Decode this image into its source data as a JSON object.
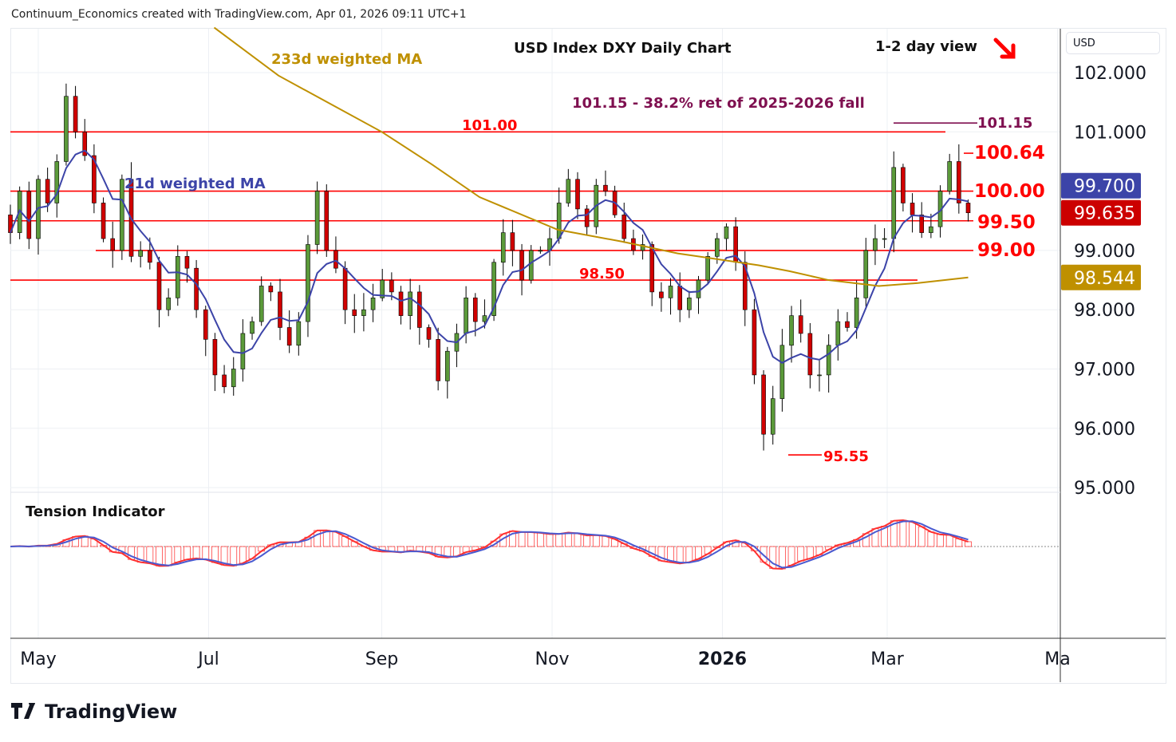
{
  "header": "Continuum_Economics created with TradingView.com, Apr 01, 2026 09:11 UTC+1",
  "currency": "USD",
  "brand": "TradingView",
  "chart_data": {
    "type": "candlestick",
    "title": "USD Index DXY Daily Chart",
    "view": "1-2 day view",
    "view_arrow": "down-right",
    "annotations": {
      "ma233_label": "233d weighted MA",
      "ma21_label": "21d weighted MA",
      "retracement": "101.15 - 38.2% ret of 2025-2026 fall",
      "level_101_15": "101.15",
      "level_101_00": "101.00",
      "level_100_64": "100.64",
      "level_100_00": "100.00",
      "level_99_50": "99.50",
      "level_99_00": "99.00",
      "level_98_50": "98.50",
      "level_95_55": "95.55",
      "indicator_title": "Tension Indicator"
    },
    "levels": [
      101.15,
      101.0,
      100.64,
      100.0,
      99.5,
      99.0,
      98.5,
      95.55
    ],
    "yticks": [
      "102.000",
      "101.000",
      "99.000",
      "98.000",
      "97.000",
      "96.000",
      "95.000"
    ],
    "ytick_values": [
      102,
      101,
      99,
      98,
      97,
      96,
      95
    ],
    "ylim": [
      95,
      102.76
    ],
    "xticks": [
      {
        "label": "May",
        "day": 10
      },
      {
        "label": "Jul",
        "day": 71
      },
      {
        "label": "Sep",
        "day": 133
      },
      {
        "label": "Nov",
        "day": 194
      },
      {
        "label": "2026",
        "day": 255,
        "bold": true
      },
      {
        "label": "Mar",
        "day": 314
      },
      {
        "label": "Ma",
        "day": 375
      }
    ],
    "last_day": 343,
    "price_badges": [
      {
        "label": "99.700",
        "value": 99.7,
        "color": "#3c44a8"
      },
      {
        "label": "99.635",
        "value": 99.635,
        "color": "#cc0000"
      },
      {
        "label": "98.544",
        "value": 98.544,
        "color": "#bf9000"
      }
    ],
    "closes": [
      99.3,
      100.0,
      99.2,
      100.2,
      99.8,
      100.5,
      101.6,
      101.0,
      100.6,
      99.8,
      99.2,
      99.0,
      100.2,
      98.9,
      99.0,
      98.8,
      98.0,
      98.2,
      98.9,
      98.7,
      98.0,
      97.5,
      96.9,
      96.7,
      97.0,
      97.6,
      97.8,
      98.4,
      98.3,
      97.7,
      97.4,
      97.8,
      99.1,
      100.0,
      99.0,
      98.7,
      98.0,
      97.9,
      98.0,
      98.2,
      98.5,
      98.3,
      97.9,
      98.3,
      97.7,
      97.5,
      96.8,
      97.3,
      97.6,
      98.2,
      97.8,
      97.9,
      98.8,
      99.3,
      99.0,
      98.5,
      99.0,
      99.0,
      99.2,
      99.8,
      100.2,
      99.7,
      99.4,
      100.1,
      100.0,
      99.6,
      99.2,
      99.0,
      99.1,
      98.3,
      98.2,
      98.4,
      98.0,
      98.2,
      98.5,
      98.9,
      99.2,
      99.4,
      98.8,
      98.0,
      96.9,
      95.9,
      96.5,
      97.4,
      97.9,
      97.6,
      96.9,
      96.9,
      97.4,
      97.8,
      97.7,
      98.2,
      99.0,
      99.2,
      99.2,
      100.4,
      99.8,
      99.6,
      99.3,
      99.4,
      100.0,
      100.5,
      99.8,
      99.635
    ],
    "ma233": [
      [
        73,
        102.76
      ],
      [
        96,
        101.95
      ],
      [
        133,
        101.0
      ],
      [
        151,
        100.45
      ],
      [
        168,
        99.9
      ],
      [
        196,
        99.35
      ],
      [
        219,
        99.15
      ],
      [
        239,
        98.95
      ],
      [
        268,
        98.75
      ],
      [
        279,
        98.65
      ],
      [
        293,
        98.5
      ],
      [
        311,
        98.4
      ],
      [
        325,
        98.45
      ],
      [
        343,
        98.544
      ]
    ],
    "colors": {
      "up": "#5b9a3a",
      "down": "#d10000",
      "ma21": "#3c44a8",
      "ma233": "#bf9000",
      "levels": "#ff0000",
      "ret": "#7f1050"
    }
  }
}
